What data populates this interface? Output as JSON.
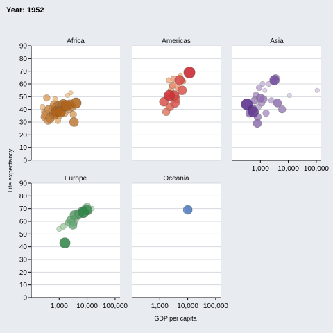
{
  "chart_data": {
    "type": "scatter",
    "title": "Year: 1952",
    "xlabel": "GDP per capita",
    "ylabel": "Life expectancy",
    "x_scale": "log",
    "xlim": [
      100,
      150000
    ],
    "ylim": [
      0,
      90
    ],
    "x_ticks": [
      1000,
      10000,
      100000
    ],
    "x_tick_labels": [
      "1,000",
      "10,000",
      "100,000"
    ],
    "y_ticks": [
      0,
      10,
      20,
      30,
      40,
      50,
      60,
      70,
      80,
      90
    ],
    "grid": true,
    "facets": [
      {
        "name": "Africa",
        "color_light": "#fdd49e",
        "color_dark": "#a6540a",
        "points": [
          {
            "x": 250,
            "y": 42,
            "s": 0.2
          },
          {
            "x": 290,
            "y": 38,
            "s": 0.3
          },
          {
            "x": 300,
            "y": 34,
            "s": 0.5
          },
          {
            "x": 330,
            "y": 36,
            "s": 0.6
          },
          {
            "x": 360,
            "y": 49,
            "s": 0.4
          },
          {
            "x": 400,
            "y": 31,
            "s": 0.5
          },
          {
            "x": 420,
            "y": 40,
            "s": 0.6
          },
          {
            "x": 470,
            "y": 33,
            "s": 0.7
          },
          {
            "x": 520,
            "y": 38,
            "s": 0.5
          },
          {
            "x": 560,
            "y": 42,
            "s": 0.3
          },
          {
            "x": 600,
            "y": 39,
            "s": 0.6
          },
          {
            "x": 650,
            "y": 44,
            "s": 0.5
          },
          {
            "x": 680,
            "y": 36,
            "s": 0.8
          },
          {
            "x": 720,
            "y": 48,
            "s": 0.2
          },
          {
            "x": 760,
            "y": 41,
            "s": 0.7
          },
          {
            "x": 800,
            "y": 38,
            "s": 0.9
          },
          {
            "x": 850,
            "y": 43,
            "s": 0.6
          },
          {
            "x": 900,
            "y": 31,
            "s": 0.3
          },
          {
            "x": 950,
            "y": 40,
            "s": 0.8
          },
          {
            "x": 1000,
            "y": 35,
            "s": 0.4
          },
          {
            "x": 1050,
            "y": 43,
            "s": 0.7
          },
          {
            "x": 1100,
            "y": 38,
            "s": 0.9
          },
          {
            "x": 1200,
            "y": 41,
            "s": 0.5
          },
          {
            "x": 1300,
            "y": 39,
            "s": 0.3
          },
          {
            "x": 1400,
            "y": 44,
            "s": 0.8
          },
          {
            "x": 1500,
            "y": 42,
            "s": 0.6
          },
          {
            "x": 1600,
            "y": 37,
            "s": 0.4
          },
          {
            "x": 1700,
            "y": 45,
            "s": 0.2
          },
          {
            "x": 1800,
            "y": 43,
            "s": 0.9
          },
          {
            "x": 2000,
            "y": 51,
            "s": 0.1
          },
          {
            "x": 2200,
            "y": 40,
            "s": 0.5
          },
          {
            "x": 2400,
            "y": 44,
            "s": 0.7
          },
          {
            "x": 2600,
            "y": 53,
            "s": 0.1
          },
          {
            "x": 2900,
            "y": 42,
            "s": 0.6
          },
          {
            "x": 3200,
            "y": 36,
            "s": 0.4
          },
          {
            "x": 3400,
            "y": 30,
            "s": 0.7
          },
          {
            "x": 4000,
            "y": 45,
            "s": 0.9
          }
        ]
      },
      {
        "name": "Americas",
        "color_light": "#fdd49e",
        "color_dark": "#c81d2a",
        "points": [
          {
            "x": 1400,
            "y": 46,
            "s": 0.7
          },
          {
            "x": 1700,
            "y": 38,
            "s": 0.5
          },
          {
            "x": 1900,
            "y": 50,
            "s": 0.4
          },
          {
            "x": 2100,
            "y": 63,
            "s": 0.2
          },
          {
            "x": 2200,
            "y": 51,
            "s": 0.9
          },
          {
            "x": 2300,
            "y": 42,
            "s": 0.6
          },
          {
            "x": 2500,
            "y": 55,
            "s": 0.3
          },
          {
            "x": 2700,
            "y": 58,
            "s": 0.2
          },
          {
            "x": 2900,
            "y": 59,
            "s": 0.4
          },
          {
            "x": 3100,
            "y": 64,
            "s": 0.3
          },
          {
            "x": 3300,
            "y": 51,
            "s": 0.8
          },
          {
            "x": 3500,
            "y": 45,
            "s": 0.7
          },
          {
            "x": 3800,
            "y": 48,
            "s": 0.6
          },
          {
            "x": 4300,
            "y": 57,
            "s": 0.3
          },
          {
            "x": 5100,
            "y": 63,
            "s": 0.8
          },
          {
            "x": 5500,
            "y": 67,
            "s": 0.1
          },
          {
            "x": 6300,
            "y": 55,
            "s": 0.7
          },
          {
            "x": 7000,
            "y": 62,
            "s": 0.2
          },
          {
            "x": 11500,
            "y": 69,
            "s": 1.0
          }
        ]
      },
      {
        "name": "Asia",
        "color_light": "#e6dcee",
        "color_dark": "#542788",
        "points": [
          {
            "x": 330,
            "y": 44,
            "s": 1.0
          },
          {
            "x": 420,
            "y": 37,
            "s": 0.6
          },
          {
            "x": 520,
            "y": 40,
            "s": 0.7
          },
          {
            "x": 560,
            "y": 38,
            "s": 0.9
          },
          {
            "x": 620,
            "y": 47,
            "s": 0.5
          },
          {
            "x": 700,
            "y": 51,
            "s": 0.4
          },
          {
            "x": 780,
            "y": 29,
            "s": 0.6
          },
          {
            "x": 800,
            "y": 34,
            "s": 0.5
          },
          {
            "x": 850,
            "y": 42,
            "s": 0.3
          },
          {
            "x": 900,
            "y": 57,
            "s": 0.3
          },
          {
            "x": 1000,
            "y": 49,
            "s": 0.6
          },
          {
            "x": 1100,
            "y": 45,
            "s": 0.4
          },
          {
            "x": 1200,
            "y": 60,
            "s": 0.2
          },
          {
            "x": 1300,
            "y": 48,
            "s": 0.5
          },
          {
            "x": 1450,
            "y": 55,
            "s": 0.1
          },
          {
            "x": 1600,
            "y": 37,
            "s": 0.4
          },
          {
            "x": 2000,
            "y": 60,
            "s": 0.2
          },
          {
            "x": 2500,
            "y": 47,
            "s": 0.3
          },
          {
            "x": 3000,
            "y": 62,
            "s": 0.3
          },
          {
            "x": 3200,
            "y": 63,
            "s": 0.8
          },
          {
            "x": 3600,
            "y": 65,
            "s": 0.4
          },
          {
            "x": 4100,
            "y": 45,
            "s": 0.6
          },
          {
            "x": 6000,
            "y": 40,
            "s": 0.5
          },
          {
            "x": 11000,
            "y": 51,
            "s": 0.1
          },
          {
            "x": 108000,
            "y": 55,
            "s": 0.1
          }
        ]
      },
      {
        "name": "Europe",
        "color_light": "#d9f0d3",
        "color_dark": "#1b7837",
        "points": [
          {
            "x": 1600,
            "y": 43,
            "s": 0.9
          },
          {
            "x": 1000,
            "y": 54,
            "s": 0.2
          },
          {
            "x": 1400,
            "y": 56,
            "s": 0.3
          },
          {
            "x": 2200,
            "y": 59,
            "s": 0.5
          },
          {
            "x": 2600,
            "y": 61,
            "s": 0.6
          },
          {
            "x": 2900,
            "y": 60,
            "s": 0.4
          },
          {
            "x": 3100,
            "y": 57,
            "s": 0.6
          },
          {
            "x": 3300,
            "y": 59,
            "s": 0.5
          },
          {
            "x": 3500,
            "y": 65,
            "s": 0.7
          },
          {
            "x": 4000,
            "y": 63,
            "s": 0.5
          },
          {
            "x": 4600,
            "y": 66,
            "s": 0.6
          },
          {
            "x": 5300,
            "y": 66,
            "s": 0.7
          },
          {
            "x": 6000,
            "y": 67,
            "s": 0.4
          },
          {
            "x": 6500,
            "y": 68,
            "s": 0.6
          },
          {
            "x": 7400,
            "y": 67,
            "s": 0.9
          },
          {
            "x": 8000,
            "y": 69,
            "s": 0.3
          },
          {
            "x": 8500,
            "y": 70,
            "s": 0.5
          },
          {
            "x": 9000,
            "y": 72,
            "s": 0.2
          },
          {
            "x": 9900,
            "y": 69,
            "s": 0.8
          },
          {
            "x": 10500,
            "y": 72,
            "s": 0.3
          },
          {
            "x": 11000,
            "y": 68,
            "s": 0.5
          },
          {
            "x": 14700,
            "y": 70,
            "s": 0.2
          }
        ]
      },
      {
        "name": "Oceania",
        "color_light": "#c6dbef",
        "color_dark": "#2b5fb5",
        "points": [
          {
            "x": 10000,
            "y": 69,
            "s": 0.7
          },
          {
            "x": 10600,
            "y": 69,
            "s": 0.5
          }
        ]
      }
    ]
  }
}
